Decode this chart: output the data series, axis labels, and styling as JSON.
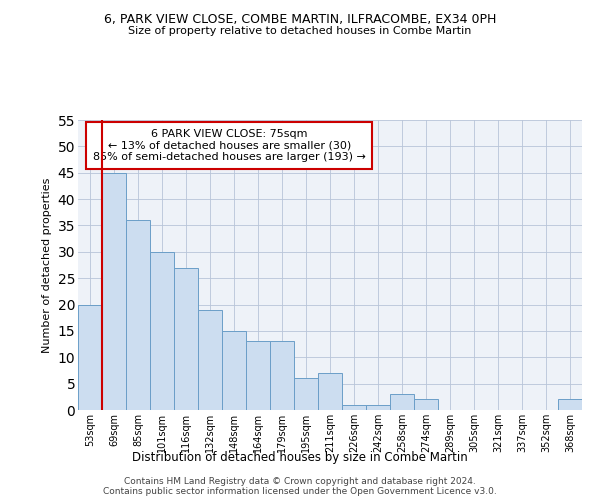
{
  "title1": "6, PARK VIEW CLOSE, COMBE MARTIN, ILFRACOMBE, EX34 0PH",
  "title2": "Size of property relative to detached houses in Combe Martin",
  "xlabel": "Distribution of detached houses by size in Combe Martin",
  "ylabel": "Number of detached properties",
  "categories": [
    "53sqm",
    "69sqm",
    "85sqm",
    "101sqm",
    "116sqm",
    "132sqm",
    "148sqm",
    "164sqm",
    "179sqm",
    "195sqm",
    "211sqm",
    "226sqm",
    "242sqm",
    "258sqm",
    "274sqm",
    "289sqm",
    "305sqm",
    "321sqm",
    "337sqm",
    "352sqm",
    "368sqm"
  ],
  "values": [
    20,
    45,
    36,
    30,
    27,
    19,
    15,
    13,
    13,
    6,
    7,
    1,
    1,
    3,
    2,
    0,
    0,
    0,
    0,
    0,
    2
  ],
  "bar_color": "#ccddf0",
  "bar_edge_color": "#6b9ec8",
  "red_line_x": 0.5,
  "annotation_text": "6 PARK VIEW CLOSE: 75sqm\n← 13% of detached houses are smaller (30)\n85% of semi-detached houses are larger (193) →",
  "annotation_box_color": "#ffffff",
  "annotation_box_edge": "#cc0000",
  "red_line_color": "#cc0000",
  "ylim": [
    0,
    55
  ],
  "yticks": [
    0,
    5,
    10,
    15,
    20,
    25,
    30,
    35,
    40,
    45,
    50,
    55
  ],
  "grid_color": "#b8c4d8",
  "background_color": "#eef2f8",
  "footer1": "Contains HM Land Registry data © Crown copyright and database right 2024.",
  "footer2": "Contains public sector information licensed under the Open Government Licence v3.0."
}
